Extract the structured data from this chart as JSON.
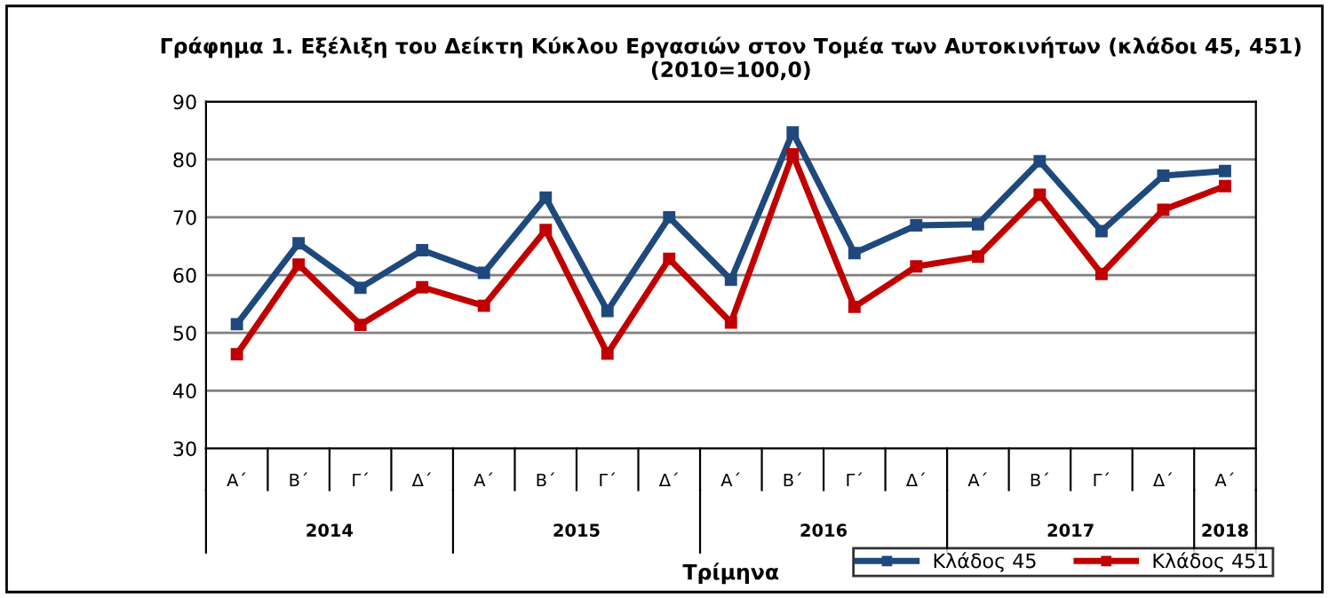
{
  "chart_data": {
    "type": "line",
    "title": "Γράφημα 1. Εξέλιξη του Δείκτη Κύκλου Εργασιών στον Τομέα των Αυτοκινήτων (κλάδοι 45, 451)\n(2010=100,0)",
    "xlabel": "Τρίμηνα",
    "categories": [
      "Α΄",
      "Β΄",
      "Γ΄",
      "Δ΄",
      "Α΄",
      "Β΄",
      "Γ΄",
      "Δ΄",
      "Α΄",
      "Β΄",
      "Γ΄",
      "Δ΄",
      "Α΄",
      "Β΄",
      "Γ΄",
      "Δ΄",
      "Α΄"
    ],
    "annotations": [
      "2014",
      "2015",
      "2016",
      "2017",
      "2018"
    ],
    "series": [
      {
        "name": "Κλάδος 45",
        "color": "#1f497d",
        "values": [
          51.5,
          65.5,
          57.8,
          64.3,
          60.4,
          73.4,
          53.8,
          70.0,
          59.2,
          84.7,
          63.8,
          68.6,
          68.8,
          79.7,
          67.6,
          77.2,
          78.0
        ]
      },
      {
        "name": "Κλάδος 451",
        "color": "#c00000",
        "values": [
          46.3,
          61.8,
          51.4,
          57.9,
          54.7,
          67.8,
          46.4,
          62.8,
          51.8,
          80.9,
          54.5,
          61.5,
          63.2,
          73.9,
          60.2,
          71.3,
          75.4
        ]
      }
    ],
    "ylim": [
      30,
      90
    ],
    "yticks": [
      30,
      40,
      50,
      60,
      70,
      80,
      90
    ],
    "grid": "y",
    "legend": "bottom right",
    "marker": "square",
    "line_style": "solid"
  }
}
